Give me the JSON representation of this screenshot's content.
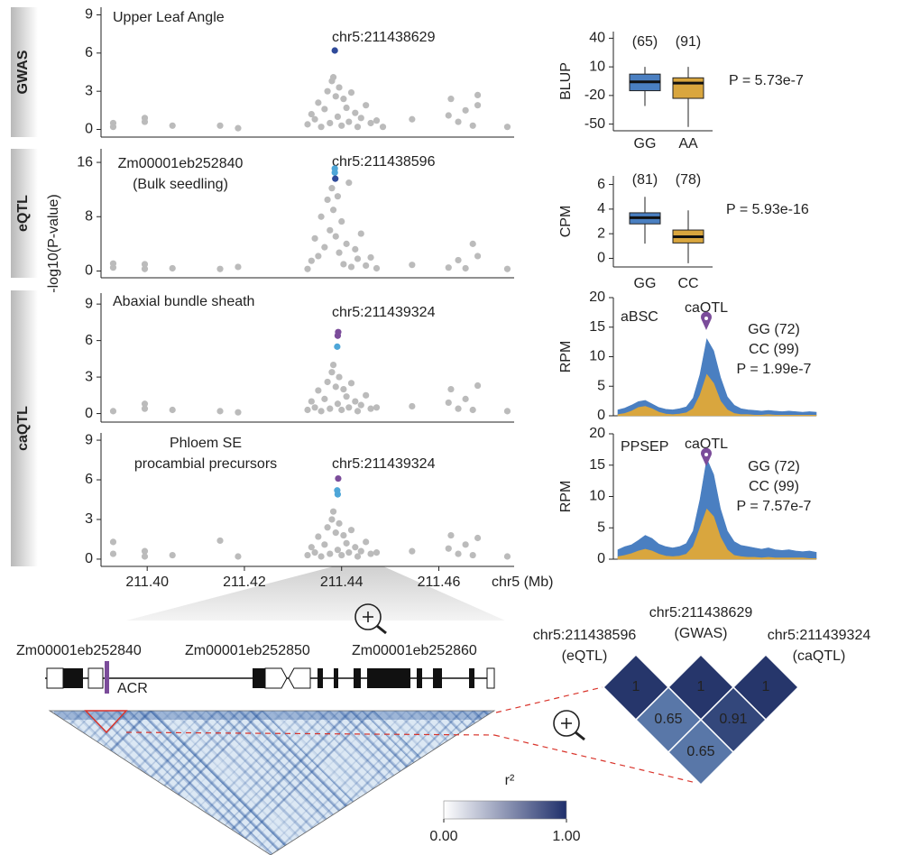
{
  "side_labels": [
    {
      "text": "GWAS",
      "color": "#2f4a9a"
    },
    {
      "text": "eQTL",
      "color": "#4ea6d8"
    },
    {
      "text": "caQTL",
      "color": "#7b4c9a"
    }
  ],
  "ylabel": "-log10(P-value)",
  "chart_data": [
    {
      "type": "scatter",
      "title": [
        "Upper Leaf Angle"
      ],
      "title_color": "#222222",
      "annotation": "chr5:211438629",
      "annotation_color": "#2f4a9a",
      "xlim": [
        211.3905,
        211.4755
      ],
      "ylim": [
        -0.6,
        9.6
      ],
      "yticks": [
        0,
        3,
        6,
        9
      ],
      "series": [
        {
          "color": "#bbbbbb",
          "x": [
            211.393,
            211.393,
            211.3995,
            211.3995,
            211.4052,
            211.415,
            211.4187,
            211.433,
            211.4338,
            211.4345,
            211.4352,
            211.4358,
            211.4365,
            211.4371,
            211.4376,
            211.438,
            211.4383,
            211.4388,
            211.4392,
            211.4395,
            211.44,
            211.4404,
            211.441,
            211.4415,
            211.442,
            211.4428,
            211.4433,
            211.444,
            211.445,
            211.446,
            211.4472,
            211.4485,
            211.4545,
            211.462,
            211.4625,
            211.464,
            211.4655,
            211.467,
            211.468,
            211.468,
            211.4741
          ],
          "values": [
            0.2,
            0.5,
            0.6,
            0.9,
            0.3,
            0.3,
            0.1,
            0.4,
            1.2,
            0.8,
            2.1,
            0.2,
            1.6,
            3.0,
            0.5,
            3.8,
            4.1,
            2.6,
            1.0,
            3.3,
            0.3,
            2.4,
            1.7,
            0.6,
            2.9,
            1.3,
            0.2,
            0.9,
            1.9,
            0.5,
            0.7,
            0.2,
            0.8,
            1.1,
            2.4,
            0.6,
            1.5,
            0.3,
            2.7,
            1.9,
            0.2
          ]
        },
        {
          "color": "#2f4a9a",
          "x": [
            211.4386
          ],
          "values": [
            6.2
          ]
        }
      ]
    },
    {
      "type": "scatter",
      "title": [
        "Zm00001eb252840",
        "(Bulk seedling)"
      ],
      "title_color": "#222222",
      "annotation": "chr5:211438596",
      "annotation_color": "#4ea6d8",
      "xlim": [
        211.3905,
        211.4755
      ],
      "ylim": [
        -1,
        18
      ],
      "yticks": [
        0,
        8,
        16
      ],
      "series": [
        {
          "color": "#bbbbbb",
          "x": [
            211.393,
            211.393,
            211.3995,
            211.3995,
            211.4052,
            211.415,
            211.4187,
            211.433,
            211.4338,
            211.4345,
            211.4352,
            211.4358,
            211.4365,
            211.4371,
            211.4376,
            211.438,
            211.4383,
            211.4388,
            211.4392,
            211.4395,
            211.44,
            211.4404,
            211.441,
            211.4415,
            211.442,
            211.4428,
            211.4433,
            211.444,
            211.445,
            211.446,
            211.4472,
            211.4545,
            211.462,
            211.464,
            211.4655,
            211.467,
            211.468,
            211.4741
          ],
          "values": [
            0.5,
            1.1,
            0.3,
            1.0,
            0.4,
            0.3,
            0.6,
            0.3,
            1.5,
            4.8,
            2.2,
            8.0,
            3.5,
            10.5,
            6.0,
            12.2,
            9.0,
            5.1,
            11.0,
            2.7,
            7.3,
            1.0,
            4.0,
            13.0,
            0.6,
            3.2,
            1.8,
            5.5,
            0.8,
            2.0,
            0.4,
            0.9,
            0.5,
            1.6,
            0.4,
            4.0,
            2.2,
            0.3
          ]
        },
        {
          "color": "#4ea6d8",
          "x": [
            211.4386,
            211.4386
          ],
          "values": [
            15.1,
            14.5
          ]
        },
        {
          "color": "#2f4a9a",
          "x": [
            211.4387
          ],
          "values": [
            13.6
          ]
        }
      ]
    },
    {
      "type": "scatter",
      "title": [
        "Abaxial bundle sheath"
      ],
      "title_color": "#d4a04a",
      "annotation": "chr5:211439324",
      "annotation_color": "#7b4c9a",
      "xlim": [
        211.3905,
        211.4755
      ],
      "ylim": [
        -0.7,
        9.9
      ],
      "yticks": [
        0,
        3,
        6,
        9
      ],
      "series": [
        {
          "color": "#bbbbbb",
          "x": [
            211.393,
            211.3995,
            211.3995,
            211.4052,
            211.415,
            211.4187,
            211.433,
            211.4338,
            211.4345,
            211.4352,
            211.4358,
            211.4365,
            211.4371,
            211.4376,
            211.438,
            211.4383,
            211.4388,
            211.4392,
            211.4395,
            211.44,
            211.4404,
            211.441,
            211.4415,
            211.442,
            211.4428,
            211.4433,
            211.444,
            211.445,
            211.446,
            211.4472,
            211.4545,
            211.462,
            211.4625,
            211.464,
            211.4655,
            211.467,
            211.468,
            211.4741
          ],
          "values": [
            0.2,
            0.4,
            0.8,
            0.3,
            0.2,
            0.1,
            0.3,
            1.0,
            0.5,
            1.9,
            0.2,
            1.2,
            2.6,
            0.4,
            3.4,
            4.0,
            2.2,
            0.8,
            3.0,
            0.3,
            2.0,
            1.4,
            0.5,
            2.5,
            1.0,
            0.2,
            0.7,
            1.5,
            0.4,
            0.5,
            0.6,
            0.9,
            2.0,
            0.4,
            1.2,
            0.3,
            2.3,
            0.2
          ]
        },
        {
          "color": "#7b4c9a",
          "x": [
            211.4393,
            211.4392
          ],
          "values": [
            6.7,
            6.4
          ]
        },
        {
          "color": "#4ea6d8",
          "x": [
            211.4391
          ],
          "values": [
            5.5
          ]
        }
      ]
    },
    {
      "type": "scatter",
      "title": [
        "Phloem SE",
        "procambial precursors"
      ],
      "title_color": "#8ab3ad",
      "annotation": "chr5:211439324",
      "annotation_color": "#7b4c9a",
      "xlim": [
        211.3905,
        211.4755
      ],
      "ylim": [
        -0.55,
        9.55
      ],
      "yticks": [
        0,
        3,
        6,
        9
      ],
      "xticks": [
        {
          "value": 211.4,
          "label": "211.40"
        },
        {
          "value": 211.42,
          "label": "211.42"
        },
        {
          "value": 211.44,
          "label": "211.44"
        },
        {
          "value": 211.46,
          "label": "211.46"
        }
      ],
      "xlabel": "chr5 (Mb)",
      "series": [
        {
          "color": "#bbbbbb",
          "x": [
            211.393,
            211.393,
            211.3995,
            211.3995,
            211.4052,
            211.415,
            211.4187,
            211.433,
            211.4338,
            211.4345,
            211.4352,
            211.4358,
            211.4365,
            211.4371,
            211.4376,
            211.438,
            211.4383,
            211.4388,
            211.4392,
            211.4395,
            211.44,
            211.4404,
            211.441,
            211.4415,
            211.442,
            211.4428,
            211.4433,
            211.444,
            211.445,
            211.446,
            211.4472,
            211.4545,
            211.462,
            211.4625,
            211.464,
            211.4655,
            211.467,
            211.468,
            211.4741
          ],
          "values": [
            1.3,
            0.4,
            0.6,
            0.2,
            0.3,
            1.4,
            0.2,
            0.3,
            0.9,
            0.5,
            1.7,
            0.2,
            1.1,
            2.4,
            0.4,
            3.0,
            3.6,
            2.0,
            0.7,
            2.7,
            0.3,
            1.8,
            1.2,
            0.5,
            2.2,
            0.9,
            0.2,
            0.6,
            1.3,
            0.4,
            0.5,
            0.6,
            0.8,
            1.8,
            0.4,
            1.1,
            0.3,
            1.6,
            0.2
          ]
        },
        {
          "color": "#7b4c9a",
          "x": [
            211.4393
          ],
          "values": [
            6.1
          ]
        },
        {
          "color": "#4ea6d8",
          "x": [
            211.4391,
            211.4392
          ],
          "values": [
            5.2,
            4.9
          ]
        }
      ]
    },
    {
      "type": "box",
      "ylabel": "BLUP",
      "ylim": [
        -57,
        47
      ],
      "yticks": [
        40,
        10,
        -20,
        -50
      ],
      "categories": [
        "GG",
        "AA"
      ],
      "category_colors": [
        "#4a7fc1",
        "#d9a63e"
      ],
      "n": [
        65,
        91
      ],
      "n_labels": [
        "(65)",
        "(91)"
      ],
      "boxes": [
        {
          "min": -31,
          "q1": -15,
          "median": -5.7,
          "q3": 2.4,
          "max": 10
        },
        {
          "min": -53,
          "q1": -23,
          "median": -7,
          "q3": -1.5,
          "max": 10
        }
      ],
      "pvalue": "P = 5.73e-7"
    },
    {
      "type": "box",
      "ylabel": "CPM",
      "ylim": [
        -0.7,
        6.7
      ],
      "yticks": [
        0,
        2,
        4,
        6
      ],
      "categories": [
        "GG",
        "CC"
      ],
      "category_colors": [
        "#4a7fc1",
        "#d9a63e"
      ],
      "n": [
        81,
        78
      ],
      "n_labels": [
        "(81)",
        "(78)"
      ],
      "boxes": [
        {
          "min": 1.2,
          "q1": 2.8,
          "median": 3.3,
          "q3": 3.7,
          "max": 5.0
        },
        {
          "min": -0.4,
          "q1": 1.25,
          "median": 1.75,
          "q3": 2.3,
          "max": 3.9
        }
      ],
      "pvalue": "P = 5.93e-16"
    },
    {
      "type": "area",
      "title": "aBSC",
      "title_color": "#d4a04a",
      "marker_label": "caQTL",
      "marker_color": "#7b4c9a",
      "ylabel": "RPM",
      "ylim": [
        0,
        20
      ],
      "yticks": [
        0,
        5,
        10,
        15,
        20
      ],
      "series": [
        {
          "name": "GG (72)",
          "color": "#4a7fc1",
          "values": [
            1.0,
            1.3,
            1.8,
            2.4,
            2.6,
            2.0,
            1.4,
            1.1,
            1.0,
            1.2,
            1.5,
            3.0,
            7.0,
            13.0,
            11.0,
            6.5,
            3.2,
            1.8,
            1.2,
            1.0,
            0.9,
            0.8,
            0.9,
            0.8,
            0.7,
            0.8,
            0.7,
            0.6,
            0.7,
            0.6
          ]
        },
        {
          "name": "CC (99)",
          "color": "#d9a63e",
          "values": [
            0.2,
            0.4,
            0.8,
            1.4,
            1.6,
            1.2,
            0.6,
            0.3,
            0.2,
            0.3,
            0.5,
            1.2,
            3.5,
            7.0,
            5.5,
            2.5,
            1.0,
            0.4,
            0.2,
            0.2,
            0.1,
            0.1,
            0.2,
            0.1,
            0.1,
            0.1,
            0.1,
            0.1,
            0.1,
            0.1
          ]
        }
      ],
      "pvalue": "P = 1.99e-7"
    },
    {
      "type": "area",
      "title": "PPSEP",
      "title_color": "#8ab3ad",
      "marker_label": "caQTL",
      "marker_color": "#7b4c9a",
      "ylabel": "RPM",
      "ylim": [
        0,
        20
      ],
      "yticks": [
        0,
        5,
        10,
        15,
        20
      ],
      "series": [
        {
          "name": "GG (72)",
          "color": "#4a7fc1",
          "values": [
            1.5,
            2.0,
            2.3,
            3.0,
            3.8,
            3.3,
            2.4,
            2.0,
            1.8,
            2.0,
            2.5,
            4.5,
            9.5,
            16.0,
            13.5,
            8.0,
            4.5,
            2.8,
            2.2,
            2.0,
            1.8,
            1.6,
            1.8,
            1.5,
            1.4,
            1.5,
            1.3,
            1.2,
            1.3,
            1.1
          ]
        },
        {
          "name": "CC (99)",
          "color": "#d9a63e",
          "values": [
            0.4,
            0.6,
            0.9,
            1.3,
            1.6,
            1.3,
            0.8,
            0.5,
            0.4,
            0.5,
            0.8,
            2.0,
            5.0,
            8.0,
            6.8,
            3.5,
            1.5,
            0.6,
            0.4,
            0.3,
            0.3,
            0.2,
            0.3,
            0.2,
            0.2,
            0.2,
            0.2,
            0.2,
            0.1,
            0.1
          ]
        }
      ],
      "pvalue": "P = 7.57e-7"
    }
  ],
  "genes": [
    {
      "name": "Zm00001eb252840",
      "color": "#4ea6d8"
    },
    {
      "name": "Zm00001eb252850",
      "color": "#111111"
    },
    {
      "name": "Zm00001eb252860",
      "color": "#111111"
    }
  ],
  "acr": {
    "label": "ACR",
    "color": "#7b4c9a"
  },
  "ld_heatmap": {
    "legend_title": "r²",
    "colors": [
      "#ffffff",
      "#1f2f6b"
    ],
    "ticks": [
      {
        "value": 0,
        "label": "0.00"
      },
      {
        "value": 1,
        "label": "1.00"
      }
    ]
  },
  "ld_diamond": {
    "snps": [
      {
        "name": "chr5:211438596",
        "role": "(eQTL)",
        "color": "#4ea6d8"
      },
      {
        "name": "chr5:211438629",
        "role": "(GWAS)",
        "color": "#2f4a9a"
      },
      {
        "name": "chr5:211439324",
        "role": "(caQTL)",
        "color": "#7b4c9a"
      }
    ],
    "r2": [
      1,
      1,
      1,
      0.65,
      0.91,
      0.65
    ]
  }
}
